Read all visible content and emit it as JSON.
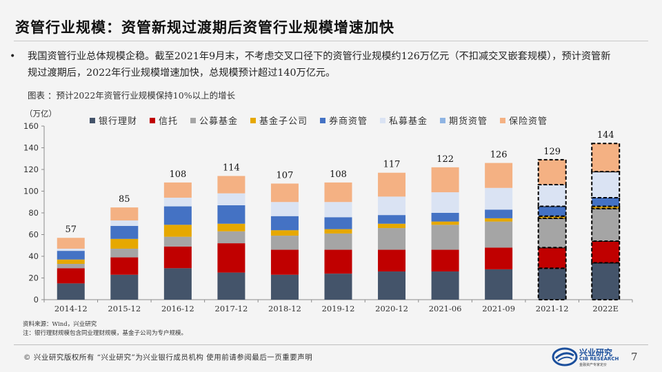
{
  "title": "资管行业规模：资管新规过渡期后资管行业规模增速加快",
  "bullet": {
    "marker": "•",
    "text": "我国资管行业总体规模企稳。截至2021年9月末，不考虑交叉口径下的资管行业规模约126万亿元（不扣减交叉嵌套规模），预计资管新规过渡期后，2022年行业规模增速加快，总规模预计超过140万亿元。"
  },
  "caption": "图表 ：预计2022年资管行业规模保持10%以上的增长",
  "source": "资料来源：Wind，兴业研究",
  "note": "注：银行理财规模包含同业理财规模，基金子公司为专户规模。",
  "footer": {
    "copyright": "©  兴业研究版权所有   “兴业研究”为兴业银行成员机构   使用前请参阅最后一页重要声明",
    "page": "7",
    "logo_name": "兴业研究",
    "logo_en": "CIB RESEARCH",
    "logo_sub": "金融资产专家定价"
  },
  "colors": {
    "bank_wm": "#44546a",
    "trust": "#c00000",
    "public_fund": "#a5a5a5",
    "fund_sub": "#e6a800",
    "broker": "#4472c4",
    "private_fund": "#dae3f3",
    "futures": "#8fb4e3",
    "insurance": "#f4b183"
  },
  "chart_data": {
    "type": "bar",
    "stacked": true,
    "ylabel": "（万亿）",
    "ylim": [
      0,
      160
    ],
    "yticks": [
      0,
      20,
      40,
      60,
      80,
      100,
      120,
      140,
      160
    ],
    "grid": false,
    "legend_position": "top",
    "categories": [
      "2014-12",
      "2015-12",
      "2016-12",
      "2017-12",
      "2018-12",
      "2019-12",
      "2020-12",
      "2021-06",
      "2021-09",
      "2021-12",
      "2022E"
    ],
    "forecast_categories": [
      "2021-12",
      "2022E"
    ],
    "totals": [
      57,
      85,
      108,
      114,
      107,
      108,
      117,
      122,
      126,
      129,
      144
    ],
    "series": [
      {
        "name": "银行理财",
        "color_key": "bank_wm",
        "values": [
          15,
          23,
          29,
          25,
          23,
          24,
          26,
          26,
          28,
          29,
          34
        ]
      },
      {
        "name": "信托",
        "color_key": "trust",
        "values": [
          14,
          16,
          20,
          27,
          23,
          22,
          20,
          20,
          20,
          19,
          20
        ]
      },
      {
        "name": "公募基金",
        "color_key": "public_fund",
        "values": [
          4,
          8,
          9,
          11,
          13,
          15,
          20,
          23,
          24,
          27,
          30
        ]
      },
      {
        "name": "基金子公司",
        "color_key": "fund_sub",
        "values": [
          4,
          9,
          11,
          7,
          5,
          4,
          4,
          3,
          3,
          2,
          2
        ]
      },
      {
        "name": "券商资管",
        "color_key": "broker",
        "values": [
          8,
          12,
          17,
          17,
          13,
          11,
          8,
          8,
          8,
          9,
          8
        ]
      },
      {
        "name": "私募基金",
        "color_key": "private_fund",
        "values": [
          2,
          5,
          8,
          11,
          13,
          14,
          17,
          19,
          20,
          20,
          24
        ]
      },
      {
        "name": "期货资管",
        "color_key": "futures",
        "values": [
          0,
          0,
          0,
          0,
          0,
          0,
          0,
          0,
          0,
          0,
          0
        ]
      },
      {
        "name": "保险资管",
        "color_key": "insurance",
        "values": [
          10,
          12,
          14,
          16,
          17,
          18,
          22,
          23,
          23,
          23,
          26
        ]
      }
    ]
  }
}
